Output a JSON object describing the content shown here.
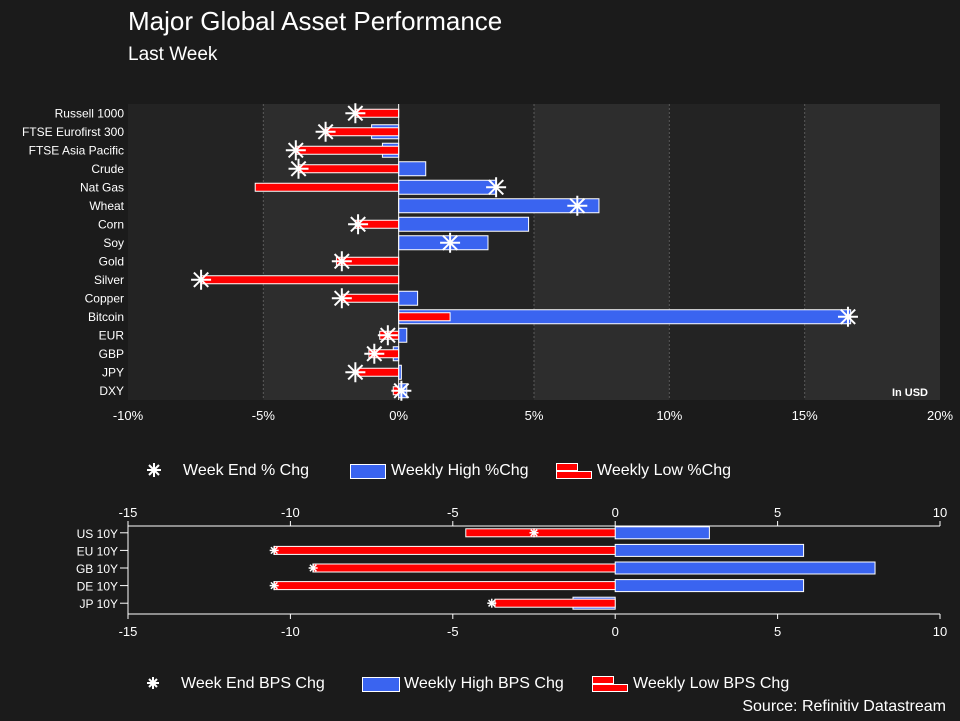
{
  "title": "Major Global Asset Performance",
  "subtitle": "Last Week",
  "source": "Source: Refinitiv Datastream",
  "colors": {
    "background": "#1b1b1b",
    "plot_light": "#232323",
    "plot_dark": "#2d2d2d",
    "high": "#3a64f0",
    "low": "#ff0000",
    "marker": "#ffffff"
  },
  "legend1": {
    "week_end": "Week End % Chg",
    "high": "Weekly High %Chg",
    "low": "Weekly Low %Chg"
  },
  "legend2": {
    "week_end": "Week End BPS Chg",
    "high": "Weekly High BPS Chg",
    "low": "Weekly Low BPS Chg"
  },
  "chart_data": [
    {
      "type": "bar",
      "orientation": "horizontal",
      "title": "Major Global Asset Performance",
      "subtitle": "Last Week",
      "annotation": "In USD",
      "xlim": [
        -10,
        20
      ],
      "xticks": [
        -10,
        -5,
        0,
        5,
        10,
        15,
        20
      ],
      "xtick_labels": [
        "-10%",
        "-5%",
        "0%",
        "5%",
        "10%",
        "15%",
        "20%"
      ],
      "grid": true,
      "categories": [
        "Russell 1000",
        "FTSE Eurofirst 300",
        "FTSE Asia Pacific",
        "Crude",
        "Nat Gas",
        "Wheat",
        "Corn",
        "Soy",
        "Gold",
        "Silver",
        "Copper",
        "Bitcoin",
        "EUR",
        "GBP",
        "JPY",
        "DXY"
      ],
      "series": [
        {
          "name": "Weekly High %Chg",
          "values": [
            0.0,
            -1.0,
            -0.6,
            1.0,
            3.6,
            7.4,
            4.8,
            3.3,
            0.0,
            0.0,
            0.7,
            16.7,
            0.3,
            -0.2,
            0.1,
            0.3
          ]
        },
        {
          "name": "Weekly Low %Chg",
          "values": [
            -1.6,
            -2.7,
            -3.8,
            -3.7,
            -5.3,
            0.0,
            -1.6,
            0.0,
            -2.3,
            -7.3,
            -2.1,
            1.9,
            -0.7,
            -1.1,
            -1.5,
            -0.2
          ]
        },
        {
          "name": "Week End % Chg",
          "values": [
            -1.6,
            -2.7,
            -3.8,
            -3.7,
            3.6,
            6.6,
            -1.5,
            1.9,
            -2.1,
            -7.3,
            -2.1,
            16.6,
            -0.4,
            -0.9,
            -1.6,
            0.1
          ]
        }
      ],
      "legend": "bottom"
    },
    {
      "type": "bar",
      "orientation": "horizontal",
      "xlim": [
        -15,
        10
      ],
      "xticks": [
        -15,
        -10,
        -5,
        0,
        5,
        10
      ],
      "xtick_labels": [
        "-15",
        "-10",
        "-5",
        "0",
        "5",
        "10"
      ],
      "categories": [
        "US 10Y",
        "EU 10Y",
        "GB 10Y",
        "DE 10Y",
        "JP 10Y"
      ],
      "series": [
        {
          "name": "Weekly High BPS Chg",
          "values": [
            2.9,
            5.8,
            8.0,
            5.8,
            -1.3
          ]
        },
        {
          "name": "Weekly Low BPS Chg",
          "values": [
            -4.6,
            -10.5,
            -9.3,
            -10.5,
            -3.7
          ]
        },
        {
          "name": "Week End BPS Chg",
          "values": [
            -2.5,
            -10.5,
            -9.3,
            -10.5,
            -3.8
          ]
        }
      ],
      "legend": "bottom"
    }
  ]
}
